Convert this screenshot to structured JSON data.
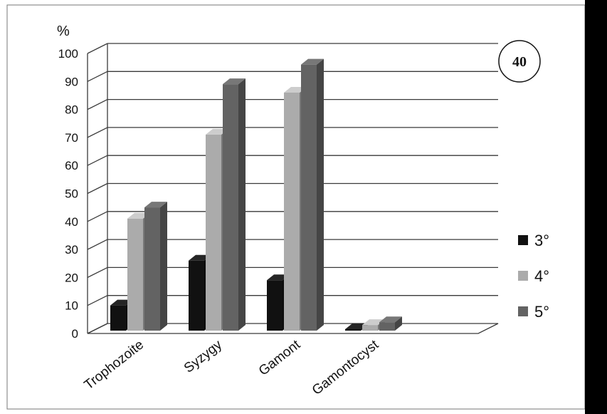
{
  "figure": {
    "badge": "40"
  },
  "chart_data": {
    "type": "bar",
    "title": "",
    "xlabel": "",
    "ylabel": "%",
    "ylim": [
      0,
      100
    ],
    "yticks": [
      0,
      10,
      20,
      30,
      40,
      50,
      60,
      70,
      80,
      90,
      100
    ],
    "categories": [
      "Trophozoite",
      "Syzygy",
      "Gamont",
      "Gamontocyst"
    ],
    "series": [
      {
        "name": "3°",
        "values": [
          9,
          25,
          18,
          0.5
        ],
        "color": "#111111"
      },
      {
        "name": "4°",
        "values": [
          40,
          70,
          85,
          2
        ],
        "color": "#ababab"
      },
      {
        "name": "5°",
        "values": [
          44,
          88,
          95,
          3
        ],
        "color": "#636363"
      }
    ],
    "grid": true,
    "legend_position": "right",
    "style": "3d-clustered-column"
  }
}
